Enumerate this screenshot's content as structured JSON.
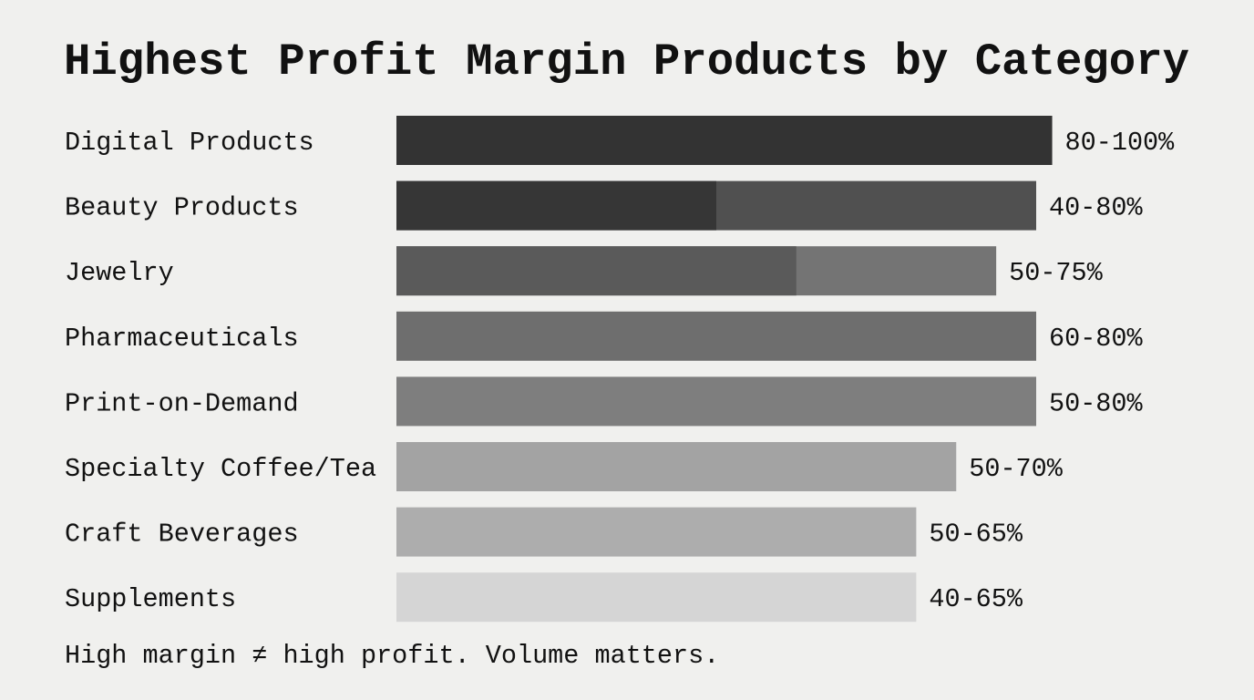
{
  "chart_data": {
    "type": "bar",
    "orientation": "horizontal",
    "title": "Highest Profit Margin Products by Category",
    "xlabel": "",
    "ylabel": "",
    "unit": "%",
    "axis_max_shown": 82,
    "grid": false,
    "categories": [
      "Digital Products",
      "Beauty Products",
      "Jewelry",
      "Pharmaceuticals",
      "Print-on-Demand",
      "Specialty Coffee/Tea",
      "Craft Beverages",
      "Supplements"
    ],
    "ranges": [
      {
        "low": 80,
        "high": 100,
        "label": "80-100%",
        "color": "#333333",
        "low_color": null
      },
      {
        "low": 40,
        "high": 80,
        "label": "40-80%",
        "color": "#505050",
        "low_color": "#363636"
      },
      {
        "low": 50,
        "high": 75,
        "label": "50-75%",
        "color": "#747474",
        "low_color": "#5a5a5a"
      },
      {
        "low": 60,
        "high": 80,
        "label": "60-80%",
        "color": "#6e6e6e",
        "low_color": null
      },
      {
        "low": 50,
        "high": 80,
        "label": "50-80%",
        "color": "#7e7e7e",
        "low_color": null
      },
      {
        "low": 50,
        "high": 70,
        "label": "50-70%",
        "color": "#a3a3a3",
        "low_color": null
      },
      {
        "low": 50,
        "high": 65,
        "label": "50-65%",
        "color": "#adadad",
        "low_color": null
      },
      {
        "low": 40,
        "high": 65,
        "label": "40-65%",
        "color": "#d5d5d5",
        "low_color": null
      }
    ],
    "footnote": "High margin ≠ high profit. Volume matters."
  }
}
